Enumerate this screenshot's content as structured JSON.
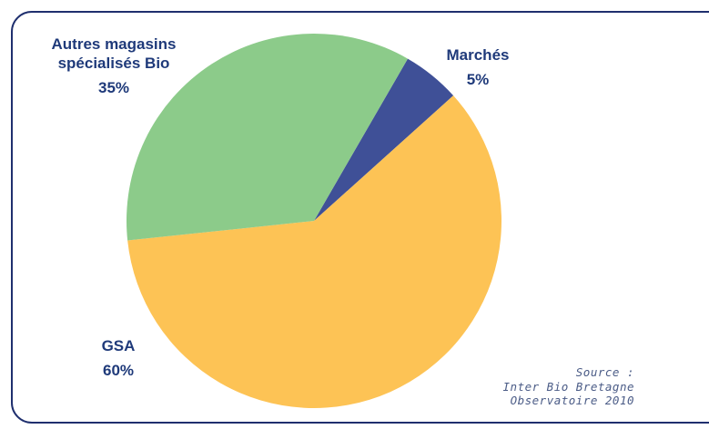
{
  "chart_data": {
    "type": "pie",
    "categories": [
      "Marchés",
      "GSA",
      "Autres magasins spécialisés Bio"
    ],
    "values": [
      5,
      60,
      35
    ],
    "value_labels": [
      "5%",
      "60%",
      "35%"
    ],
    "colors": [
      "#3f5097",
      "#fdc355",
      "#8ccb8a"
    ],
    "source": [
      "Source :",
      "Inter Bio Bretagne",
      "Observatoire 2010"
    ]
  }
}
